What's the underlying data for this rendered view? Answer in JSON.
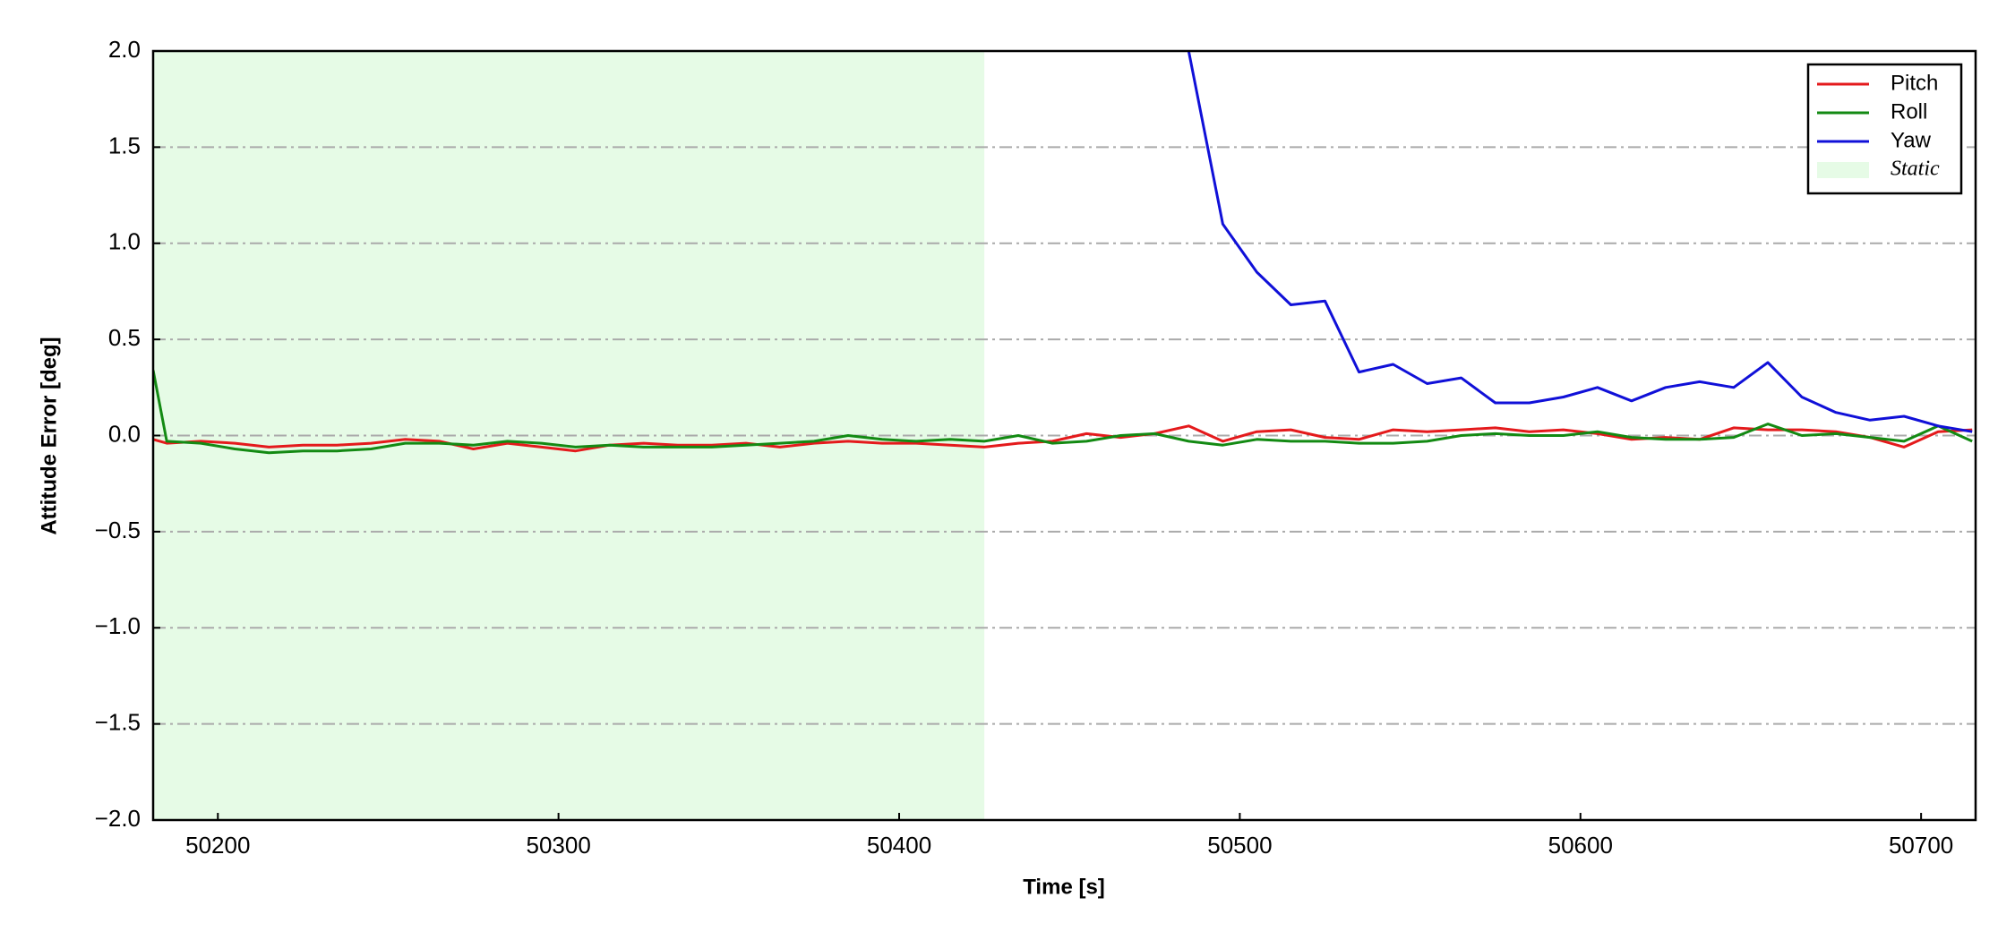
{
  "chart_data": {
    "type": "line",
    "xlabel": "Time [s]",
    "ylabel": "Attitude Error [deg]",
    "x": [
      50181,
      50185,
      50195,
      50205,
      50215,
      50225,
      50235,
      50245,
      50255,
      50265,
      50275,
      50285,
      50295,
      50305,
      50315,
      50325,
      50335,
      50345,
      50355,
      50365,
      50375,
      50385,
      50395,
      50405,
      50415,
      50425,
      50435,
      50445,
      50455,
      50465,
      50475,
      50485,
      50495,
      50505,
      50515,
      50525,
      50535,
      50545,
      50555,
      50565,
      50575,
      50585,
      50595,
      50605,
      50615,
      50625,
      50635,
      50645,
      50655,
      50665,
      50675,
      50685,
      50695,
      50705,
      50715
    ],
    "series": [
      {
        "name": "Pitch",
        "color": "#e41a1c",
        "values": [
          -0.02,
          -0.04,
          -0.03,
          -0.04,
          -0.06,
          -0.05,
          -0.05,
          -0.04,
          -0.02,
          -0.03,
          -0.07,
          -0.04,
          -0.06,
          -0.08,
          -0.05,
          -0.04,
          -0.05,
          -0.05,
          -0.04,
          -0.06,
          -0.04,
          -0.03,
          -0.04,
          -0.04,
          -0.05,
          -0.06,
          -0.04,
          -0.03,
          0.01,
          -0.01,
          0.01,
          0.05,
          -0.03,
          0.02,
          0.03,
          -0.01,
          -0.02,
          0.03,
          0.02,
          0.03,
          0.04,
          0.02,
          0.03,
          0.01,
          -0.02,
          -0.01,
          -0.02,
          0.04,
          0.03,
          0.03,
          0.02,
          -0.01,
          -0.06,
          0.02,
          0.03
        ]
      },
      {
        "name": "Roll",
        "color": "#138a13",
        "values": [
          0.34,
          -0.03,
          -0.04,
          -0.07,
          -0.09,
          -0.08,
          -0.08,
          -0.07,
          -0.04,
          -0.04,
          -0.05,
          -0.03,
          -0.04,
          -0.06,
          -0.05,
          -0.06,
          -0.06,
          -0.06,
          -0.05,
          -0.04,
          -0.03,
          0.0,
          -0.02,
          -0.03,
          -0.02,
          -0.03,
          0.0,
          -0.04,
          -0.03,
          0.0,
          0.01,
          -0.03,
          -0.05,
          -0.02,
          -0.03,
          -0.03,
          -0.04,
          -0.04,
          -0.03,
          0.0,
          0.01,
          0.0,
          0.0,
          0.02,
          -0.01,
          -0.02,
          -0.02,
          -0.01,
          0.06,
          0.0,
          0.01,
          -0.01,
          -0.03,
          0.05,
          -0.03
        ]
      },
      {
        "name": "Yaw",
        "color": "#1010d8",
        "values": [
          null,
          null,
          null,
          null,
          null,
          null,
          null,
          null,
          null,
          null,
          null,
          null,
          null,
          null,
          null,
          null,
          null,
          null,
          null,
          null,
          null,
          null,
          null,
          null,
          null,
          null,
          null,
          null,
          null,
          null,
          null,
          2.0,
          1.1,
          0.85,
          0.68,
          0.7,
          0.33,
          0.37,
          0.27,
          0.3,
          0.17,
          0.17,
          0.2,
          0.25,
          0.18,
          0.25,
          0.28,
          0.25,
          0.38,
          0.2,
          0.12,
          0.08,
          0.1,
          0.05,
          0.02
        ]
      }
    ],
    "shaded_region": {
      "label": "Static",
      "xmin": 50181,
      "xmax": 50425,
      "color": "#e6fbe6"
    },
    "xlim": [
      50181,
      50716
    ],
    "xticks": [
      50200,
      50300,
      50400,
      50500,
      50600,
      50700
    ],
    "ylim": [
      -2,
      2
    ],
    "yticks": [
      {
        "value": -2,
        "label": "−2.0"
      },
      {
        "value": -1.5,
        "label": "−1.5"
      },
      {
        "value": -1,
        "label": "−1.0"
      },
      {
        "value": -0.5,
        "label": "−0.5"
      },
      {
        "value": 0,
        "label": "0.0"
      },
      0.5,
      {
        "value": 1,
        "label": "1.0"
      },
      1.5,
      {
        "value": 2,
        "label": "2.0"
      }
    ],
    "grid": true,
    "legend": "upper right"
  }
}
